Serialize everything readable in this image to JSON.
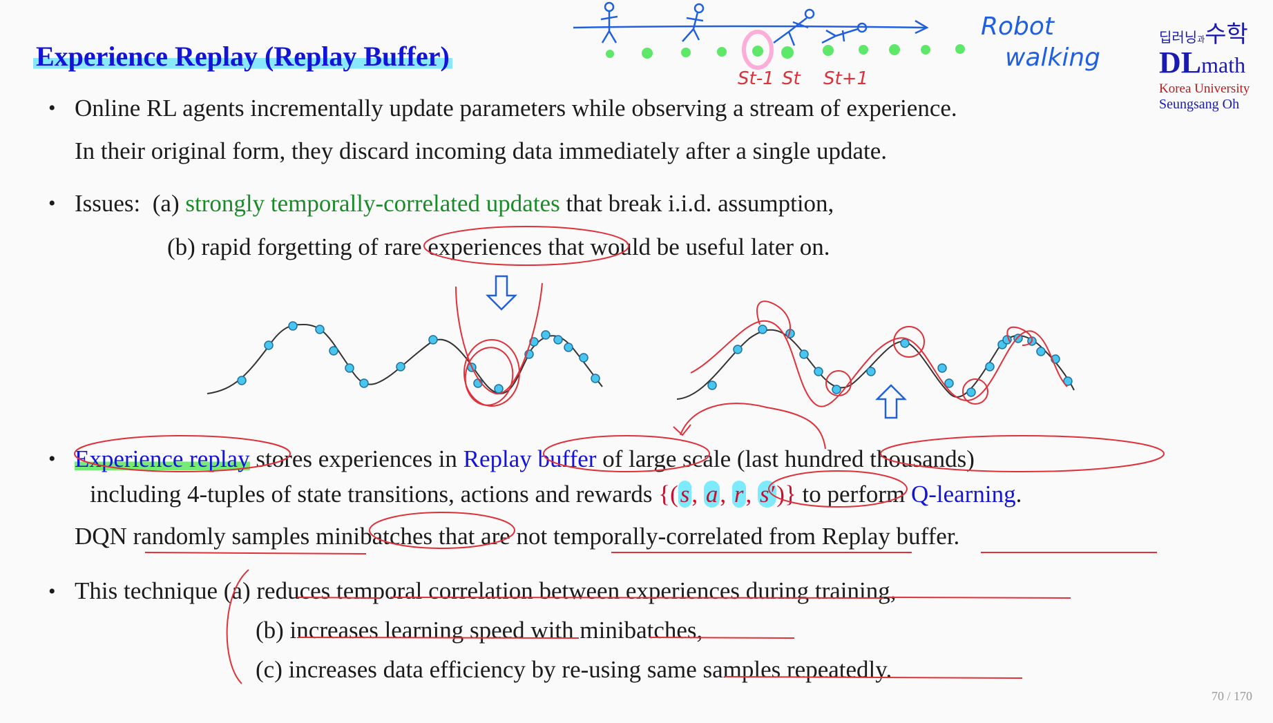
{
  "title": "Experience Replay (Replay Buffer)",
  "logo": {
    "korean_small": "딥러닝",
    "korean_and": "과",
    "korean_big": "수학",
    "dl": "DL",
    "math": "math",
    "university": "Korea University",
    "author": "Seungsang Oh"
  },
  "annotations": {
    "robot_1": "Robot",
    "robot_2": "walking",
    "states": [
      "St-1",
      "St",
      "St+1"
    ]
  },
  "bullets": {
    "b1_line1": "Online RL agents incrementally update parameters while observing a stream of experience.",
    "b1_line2": "In their original form, they discard incoming data immediately after a single update.",
    "b2_prefix": "Issues:",
    "b2a_label": "(a)",
    "b2a_green": "strongly temporally-correlated updates",
    "b2a_rest": "that break i.i.d. assumption,",
    "b2b": "(b) rapid forgetting of rare experiences that would be useful later on.",
    "b3_hl": "Experience replay",
    "b3_mid": "stores experiences in",
    "b3_blue": "Replay buffer",
    "b3_end": "of large scale (last hundred thousands)",
    "b3_line2_start": "including 4-tuples of state transitions, actions and rewards",
    "tuple_open": "{(",
    "tuple_s": "s",
    "tuple_a": "a",
    "tuple_r": "r",
    "tuple_s2": "s′",
    "tuple_close": ")}",
    "b3_line2_mid": "to perform",
    "b3_qlearn": "Q-learning",
    "b3_line3": "DQN randomly samples minibatches that are not temporally-correlated from Replay buffer.",
    "b4_prefix": "This technique",
    "b4a": "(a) reduces temporal correlation between experiences during training,",
    "b4b": "(b) increases learning speed with minibatches,",
    "b4c": "(c) increases data efficiency by re-using same samples repeatedly."
  },
  "page": "70 / 170",
  "colors": {
    "title": "#1414d8",
    "green_text": "#1c8a2a",
    "pen_red": "#e0303a",
    "pen_blue": "#2060e0",
    "point_cyan": "#49c6ee",
    "dots_green": "#5ee86a"
  }
}
